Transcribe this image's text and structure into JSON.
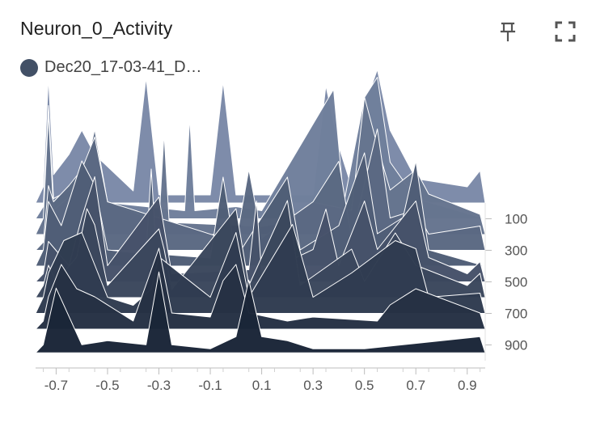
{
  "card": {
    "title": "Neuron_0_Activity",
    "pin_icon": "pin-icon",
    "expand_icon": "fullscreen-icon"
  },
  "legend": {
    "run_label": "Dec20_17-03-41_D…",
    "run_color": "#425066"
  },
  "chart_data": {
    "type": "histogram-offset",
    "x_axis": {
      "ticks": [
        -0.7,
        -0.5,
        -0.3,
        -0.1,
        0.1,
        0.3,
        0.5,
        0.7,
        0.9
      ],
      "range": [
        -0.78,
        0.97
      ]
    },
    "y_axis": {
      "ticks": [
        100,
        300,
        500,
        700,
        900
      ],
      "range": [
        0,
        1000
      ],
      "position": "right"
    },
    "color_light": "#7b8aa8",
    "color_dark": "#1b2638",
    "histograms": [
      {
        "step": 0,
        "bins": [
          [
            -0.75,
            20
          ],
          [
            -0.73,
            155
          ],
          [
            -0.71,
            35
          ],
          [
            -0.65,
            60
          ],
          [
            -0.6,
            90
          ],
          [
            -0.55,
            60
          ],
          [
            -0.4,
            15
          ],
          [
            -0.35,
            155
          ],
          [
            -0.3,
            10
          ],
          [
            -0.1,
            10
          ],
          [
            -0.05,
            150
          ],
          [
            0.0,
            10
          ],
          [
            0.3,
            10
          ],
          [
            0.35,
            145
          ],
          [
            0.4,
            70
          ],
          [
            0.45,
            20
          ],
          [
            0.5,
            120
          ],
          [
            0.55,
            165
          ],
          [
            0.6,
            90
          ],
          [
            0.7,
            30
          ],
          [
            0.9,
            20
          ],
          [
            0.95,
            40
          ]
        ]
      },
      {
        "step": 100,
        "bins": [
          [
            -0.75,
            15
          ],
          [
            -0.73,
            140
          ],
          [
            -0.71,
            25
          ],
          [
            -0.65,
            35
          ],
          [
            -0.6,
            40
          ],
          [
            -0.55,
            70
          ],
          [
            -0.5,
            20
          ],
          [
            -0.2,
            10
          ],
          [
            -0.18,
            125
          ],
          [
            -0.16,
            10
          ],
          [
            0.0,
            15
          ],
          [
            0.1,
            10
          ],
          [
            0.38,
            160
          ],
          [
            0.42,
            20
          ],
          [
            0.5,
            150
          ],
          [
            0.55,
            175
          ],
          [
            0.6,
            70
          ],
          [
            0.7,
            25
          ]
        ]
      },
      {
        "step": 200,
        "bins": [
          [
            -0.75,
            20
          ],
          [
            -0.73,
            150
          ],
          [
            -0.71,
            30
          ],
          [
            -0.6,
            60
          ],
          [
            -0.55,
            130
          ],
          [
            -0.5,
            40
          ],
          [
            -0.3,
            15
          ],
          [
            -0.28,
            125
          ],
          [
            -0.26,
            15
          ],
          [
            0.1,
            10
          ],
          [
            0.2,
            15
          ],
          [
            0.3,
            40
          ],
          [
            0.45,
            30
          ],
          [
            0.5,
            170
          ],
          [
            0.55,
            110
          ],
          [
            0.6,
            55
          ],
          [
            0.7,
            80
          ],
          [
            0.75,
            50
          ],
          [
            0.95,
            25
          ]
        ]
      },
      {
        "step": 300,
        "bins": [
          [
            -0.75,
            10
          ],
          [
            -0.73,
            80
          ],
          [
            -0.71,
            60
          ],
          [
            -0.65,
            80
          ],
          [
            -0.6,
            100
          ],
          [
            -0.55,
            140
          ],
          [
            -0.5,
            60
          ],
          [
            0.0,
            10
          ],
          [
            0.05,
            100
          ],
          [
            0.1,
            15
          ],
          [
            0.3,
            60
          ],
          [
            0.4,
            110
          ],
          [
            0.45,
            15
          ],
          [
            0.55,
            150
          ],
          [
            0.6,
            40
          ],
          [
            0.7,
            50
          ],
          [
            0.75,
            20
          ],
          [
            0.95,
            30
          ]
        ]
      },
      {
        "step": 400,
        "bins": [
          [
            -0.75,
            20
          ],
          [
            -0.73,
            80
          ],
          [
            -0.68,
            50
          ],
          [
            -0.6,
            130
          ],
          [
            -0.55,
            100
          ],
          [
            -0.5,
            20
          ],
          [
            -0.35,
            15
          ],
          [
            -0.33,
            120
          ],
          [
            -0.31,
            15
          ],
          [
            -0.1,
            10
          ],
          [
            -0.05,
            110
          ],
          [
            0.0,
            10
          ],
          [
            0.2,
            110
          ],
          [
            0.25,
            20
          ],
          [
            0.4,
            50
          ],
          [
            0.5,
            140
          ],
          [
            0.55,
            40
          ],
          [
            0.65,
            60
          ],
          [
            0.7,
            130
          ],
          [
            0.75,
            20
          ]
        ]
      },
      {
        "step": 500,
        "bins": [
          [
            -0.75,
            10
          ],
          [
            -0.73,
            50
          ],
          [
            -0.65,
            20
          ],
          [
            -0.6,
            80
          ],
          [
            -0.55,
            130
          ],
          [
            -0.5,
            20
          ],
          [
            -0.3,
            105
          ],
          [
            -0.25,
            10
          ],
          [
            0.05,
            15
          ],
          [
            0.08,
            100
          ],
          [
            0.1,
            10
          ],
          [
            0.3,
            40
          ],
          [
            0.35,
            90
          ],
          [
            0.4,
            20
          ],
          [
            0.5,
            100
          ],
          [
            0.55,
            40
          ],
          [
            0.7,
            100
          ],
          [
            0.75,
            30
          ],
          [
            0.9,
            10
          ],
          [
            0.95,
            25
          ]
        ]
      },
      {
        "step": 600,
        "bins": [
          [
            -0.75,
            15
          ],
          [
            -0.73,
            40
          ],
          [
            -0.7,
            20
          ],
          [
            -0.62,
            50
          ],
          [
            -0.58,
            110
          ],
          [
            -0.55,
            90
          ],
          [
            -0.5,
            15
          ],
          [
            -0.3,
            85
          ],
          [
            -0.28,
            60
          ],
          [
            -0.25,
            10
          ],
          [
            0.0,
            110
          ],
          [
            0.05,
            15
          ],
          [
            0.2,
            120
          ],
          [
            0.25,
            15
          ],
          [
            0.45,
            60
          ],
          [
            0.5,
            20
          ],
          [
            0.62,
            80
          ],
          [
            0.7,
            40
          ],
          [
            0.9,
            15
          ],
          [
            0.95,
            30
          ]
        ]
      },
      {
        "step": 700,
        "bins": [
          [
            -0.75,
            20
          ],
          [
            -0.73,
            50
          ],
          [
            -0.67,
            90
          ],
          [
            -0.6,
            100
          ],
          [
            -0.55,
            60
          ],
          [
            -0.5,
            20
          ],
          [
            -0.4,
            10
          ],
          [
            -0.33,
            30
          ],
          [
            -0.3,
            70
          ],
          [
            -0.1,
            20
          ],
          [
            0.0,
            100
          ],
          [
            0.05,
            20
          ],
          [
            0.22,
            110
          ],
          [
            0.3,
            20
          ],
          [
            0.45,
            50
          ],
          [
            0.62,
            90
          ],
          [
            0.7,
            80
          ],
          [
            0.75,
            20
          ],
          [
            0.95,
            25
          ]
        ]
      },
      {
        "step": 800,
        "bins": [
          [
            -0.75,
            10
          ],
          [
            -0.73,
            40
          ],
          [
            -0.68,
            80
          ],
          [
            -0.62,
            50
          ],
          [
            -0.55,
            40
          ],
          [
            -0.4,
            10
          ],
          [
            -0.3,
            100
          ],
          [
            -0.25,
            20
          ],
          [
            -0.1,
            15
          ],
          [
            -0.05,
            60
          ],
          [
            0.0,
            80
          ],
          [
            0.05,
            20
          ],
          [
            0.2,
            10
          ],
          [
            0.3,
            15
          ],
          [
            0.55,
            10
          ],
          [
            0.6,
            30
          ],
          [
            0.7,
            50
          ],
          [
            0.95,
            20
          ]
        ]
      },
      {
        "step": 950,
        "bins": [
          [
            -0.75,
            10
          ],
          [
            -0.7,
            80
          ],
          [
            -0.6,
            10
          ],
          [
            -0.5,
            15
          ],
          [
            -0.35,
            10
          ],
          [
            -0.3,
            100
          ],
          [
            -0.25,
            10
          ],
          [
            -0.1,
            5
          ],
          [
            0.0,
            20
          ],
          [
            0.05,
            90
          ],
          [
            0.1,
            20
          ],
          [
            0.2,
            15
          ],
          [
            0.3,
            5
          ],
          [
            0.5,
            5
          ],
          [
            0.95,
            20
          ]
        ]
      }
    ]
  }
}
